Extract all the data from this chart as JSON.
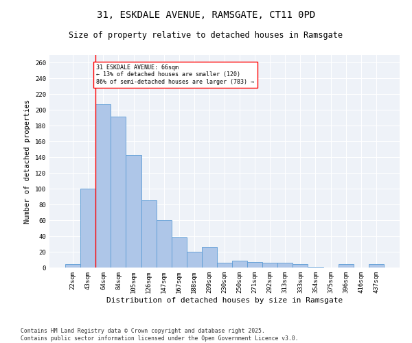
{
  "title": "31, ESKDALE AVENUE, RAMSGATE, CT11 0PD",
  "subtitle": "Size of property relative to detached houses in Ramsgate",
  "xlabel": "Distribution of detached houses by size in Ramsgate",
  "ylabel": "Number of detached properties",
  "categories": [
    "22sqm",
    "43sqm",
    "64sqm",
    "84sqm",
    "105sqm",
    "126sqm",
    "147sqm",
    "167sqm",
    "188sqm",
    "209sqm",
    "230sqm",
    "250sqm",
    "271sqm",
    "292sqm",
    "313sqm",
    "333sqm",
    "354sqm",
    "375sqm",
    "396sqm",
    "416sqm",
    "437sqm"
  ],
  "values": [
    4,
    100,
    207,
    192,
    143,
    85,
    60,
    38,
    20,
    26,
    6,
    9,
    7,
    6,
    6,
    4,
    1,
    0,
    4,
    0,
    4
  ],
  "bar_color": "#aec6e8",
  "bar_edge_color": "#5b9bd5",
  "vline_x": 1.5,
  "vline_color": "red",
  "annotation_text": "31 ESKDALE AVENUE: 66sqm\n← 13% of detached houses are smaller (120)\n86% of semi-detached houses are larger (783) →",
  "annotation_box_color": "white",
  "annotation_box_edge": "red",
  "ylim": [
    0,
    270
  ],
  "yticks": [
    0,
    20,
    40,
    60,
    80,
    100,
    120,
    140,
    160,
    180,
    200,
    220,
    240,
    260
  ],
  "bg_color": "#eef2f8",
  "footer": "Contains HM Land Registry data © Crown copyright and database right 2025.\nContains public sector information licensed under the Open Government Licence v3.0.",
  "title_fontsize": 10,
  "subtitle_fontsize": 8.5,
  "xlabel_fontsize": 8,
  "ylabel_fontsize": 7.5,
  "tick_fontsize": 6.5,
  "footer_fontsize": 5.8
}
